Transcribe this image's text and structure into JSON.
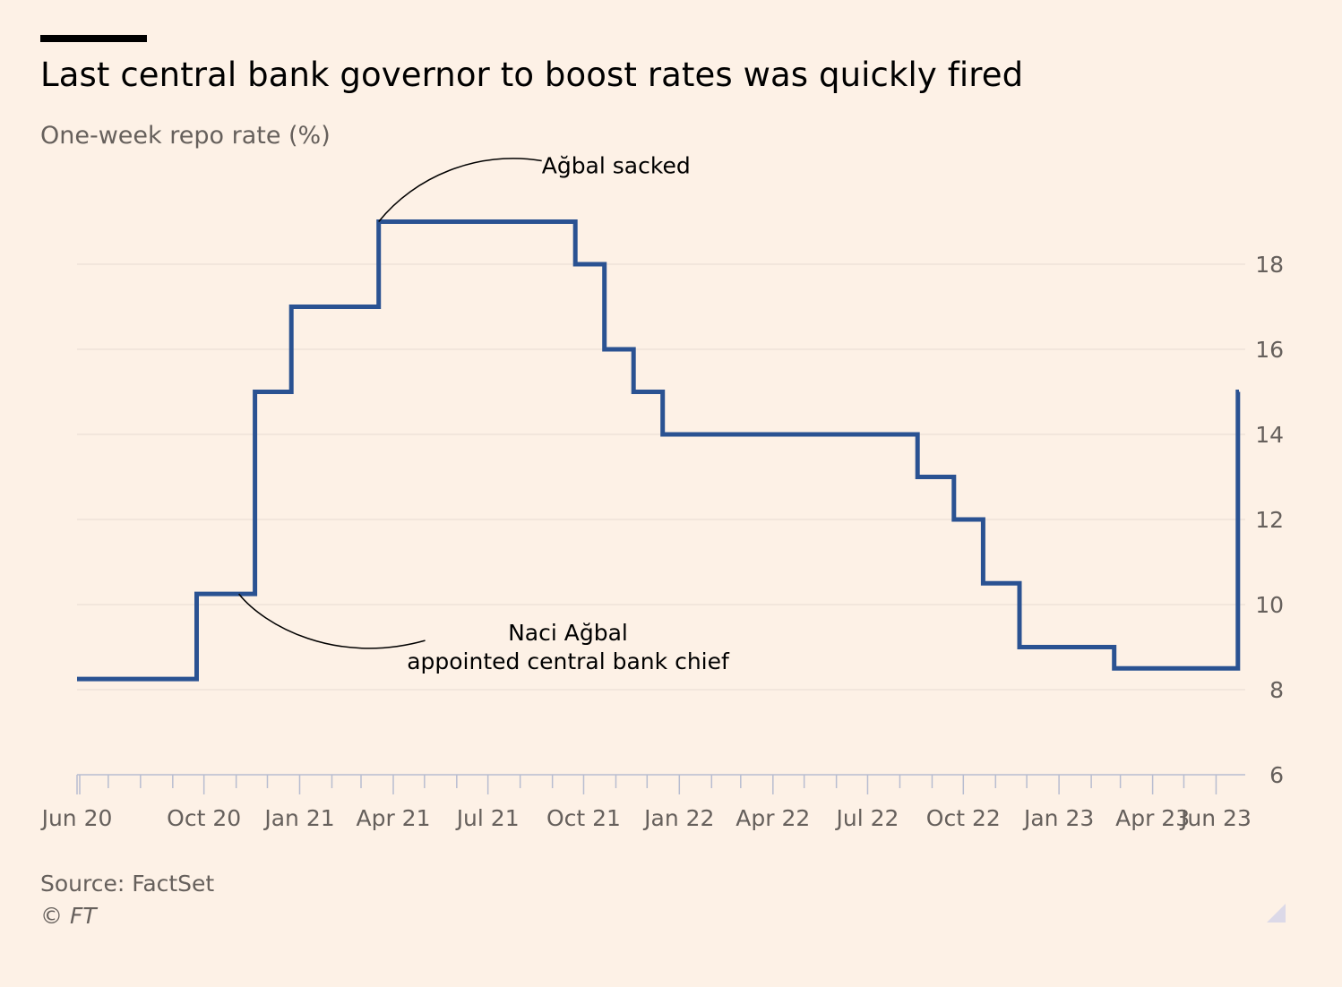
{
  "header": {
    "title": "Last central bank governor to boost rates was quickly fired",
    "subtitle": "One-week repo rate (%)"
  },
  "footer": {
    "source": "Source: FactSet",
    "copyright": "© FT"
  },
  "colors": {
    "background": "#FDF1E6",
    "line": "#2A5292",
    "grid": "#E6DCD3",
    "axis": "#B8BDD0",
    "tick_text": "#66605C",
    "annotation_text": "#000000"
  },
  "chart_data": {
    "type": "line",
    "step": true,
    "title": "Last central bank governor to boost rates was quickly fired",
    "ylabel": "One-week repo rate (%)",
    "xlabel": "",
    "xlim": [
      "2020-06-01",
      "2023-06-23"
    ],
    "ylim": [
      6,
      19
    ],
    "y_ticks": [
      6,
      8,
      10,
      12,
      14,
      16,
      18
    ],
    "y_tick_labels": [
      "6",
      "8",
      "10",
      "12",
      "14",
      "16",
      "18"
    ],
    "y_axis_side": "right",
    "grid": true,
    "x_ticks": [
      {
        "label": "Jun 20",
        "date": "2020-06-01"
      },
      {
        "label": "Oct 20",
        "date": "2020-10-01"
      },
      {
        "label": "Jan 21",
        "date": "2021-01-01"
      },
      {
        "label": "Apr 21",
        "date": "2021-04-01"
      },
      {
        "label": "Jul 21",
        "date": "2021-07-01"
      },
      {
        "label": "Oct 21",
        "date": "2021-10-01"
      },
      {
        "label": "Jan 22",
        "date": "2022-01-01"
      },
      {
        "label": "Apr 22",
        "date": "2022-04-01"
      },
      {
        "label": "Jul 22",
        "date": "2022-07-01"
      },
      {
        "label": "Oct 22",
        "date": "2022-10-01"
      },
      {
        "label": "Jan 23",
        "date": "2023-01-01"
      },
      {
        "label": "Apr 23",
        "date": "2023-04-01"
      },
      {
        "label": "Jun 23",
        "date": "2023-06-01"
      }
    ],
    "series": [
      {
        "name": "",
        "points": [
          {
            "x": "2020-06-01",
            "y": 8.25
          },
          {
            "x": "2020-09-24",
            "y": 10.25
          },
          {
            "x": "2020-11-19",
            "y": 15
          },
          {
            "x": "2020-12-24",
            "y": 17
          },
          {
            "x": "2021-03-18",
            "y": 19
          },
          {
            "x": "2021-09-23",
            "y": 18
          },
          {
            "x": "2021-10-21",
            "y": 16
          },
          {
            "x": "2021-11-18",
            "y": 15
          },
          {
            "x": "2021-12-16",
            "y": 14
          },
          {
            "x": "2022-08-18",
            "y": 13
          },
          {
            "x": "2022-09-22",
            "y": 12
          },
          {
            "x": "2022-10-20",
            "y": 10.5
          },
          {
            "x": "2022-11-24",
            "y": 9
          },
          {
            "x": "2023-02-23",
            "y": 8.5
          },
          {
            "x": "2023-06-22",
            "y": 15
          },
          {
            "x": "2023-06-23",
            "y": 15
          }
        ]
      }
    ],
    "annotations": [
      {
        "text": "Ağbal sacked",
        "x": "2021-03-18",
        "y": 19
      },
      {
        "lines": [
          "Naci Ağbal",
          "appointed central bank chief"
        ],
        "x": "2020-11-19",
        "y": 10.25
      }
    ]
  }
}
